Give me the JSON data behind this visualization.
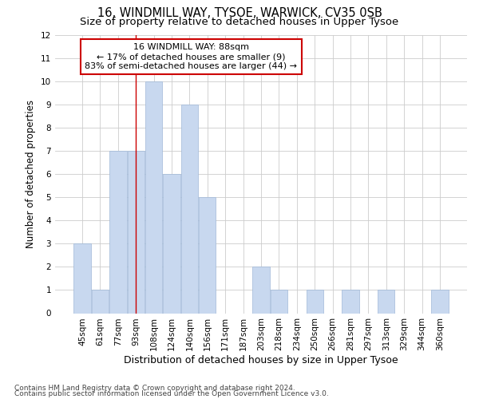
{
  "title1": "16, WINDMILL WAY, TYSOE, WARWICK, CV35 0SB",
  "title2": "Size of property relative to detached houses in Upper Tysoe",
  "xlabel": "Distribution of detached houses by size in Upper Tysoe",
  "ylabel": "Number of detached properties",
  "categories": [
    "45sqm",
    "61sqm",
    "77sqm",
    "93sqm",
    "108sqm",
    "124sqm",
    "140sqm",
    "156sqm",
    "171sqm",
    "187sqm",
    "203sqm",
    "218sqm",
    "234sqm",
    "250sqm",
    "266sqm",
    "281sqm",
    "297sqm",
    "313sqm",
    "329sqm",
    "344sqm",
    "360sqm"
  ],
  "values": [
    3,
    1,
    7,
    7,
    10,
    6,
    9,
    5,
    0,
    0,
    2,
    1,
    0,
    1,
    0,
    1,
    0,
    1,
    0,
    0,
    1
  ],
  "bar_color": "#c8d8ef",
  "bar_edge_color": "#a0b8d8",
  "annotation_text": "16 WINDMILL WAY: 88sqm\n← 17% of detached houses are smaller (9)\n83% of semi-detached houses are larger (44) →",
  "vline_x": 2.98,
  "vline_color": "#cc0000",
  "annotation_box_color": "#ffffff",
  "annotation_box_edgecolor": "#cc0000",
  "ylim": [
    0,
    12
  ],
  "yticks": [
    0,
    1,
    2,
    3,
    4,
    5,
    6,
    7,
    8,
    9,
    10,
    11,
    12
  ],
  "footer1": "Contains HM Land Registry data © Crown copyright and database right 2024.",
  "footer2": "Contains public sector information licensed under the Open Government Licence v3.0.",
  "grid_color": "#cccccc",
  "background_color": "#ffffff",
  "title1_fontsize": 10.5,
  "title2_fontsize": 9.5,
  "xlabel_fontsize": 9,
  "ylabel_fontsize": 8.5,
  "tick_fontsize": 7.5,
  "annot_fontsize": 8,
  "footer_fontsize": 6.5
}
